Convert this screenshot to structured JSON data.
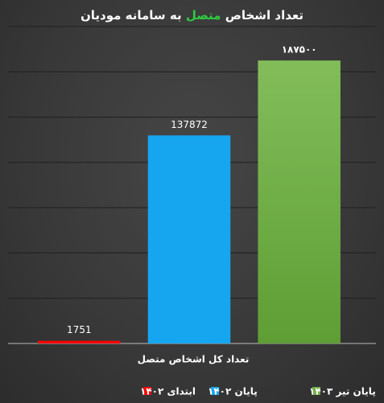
{
  "chart_data": {
    "type": "bar",
    "title": {
      "before": "تعداد اشخاص",
      "highlight": "متصل",
      "after": "به سامانه مودیان"
    },
    "x_label": "تعداد کل اشخاص متصل",
    "categories": [
      "ابتدای ۱۴۰۲",
      "پایان ۱۴۰۲",
      "پایان تیر ۱۴۰۳"
    ],
    "values": [
      1751,
      137872,
      187500
    ],
    "value_labels": [
      "1751",
      "137872",
      "۱۸۷۵۰۰"
    ],
    "colors": [
      "#ff0000",
      "#15a6ef",
      "#70ad47"
    ],
    "ylim": [
      0,
      210000
    ],
    "yticks": [
      0,
      30000,
      60000,
      90000,
      120000,
      150000,
      180000,
      210000
    ],
    "grid": true
  }
}
